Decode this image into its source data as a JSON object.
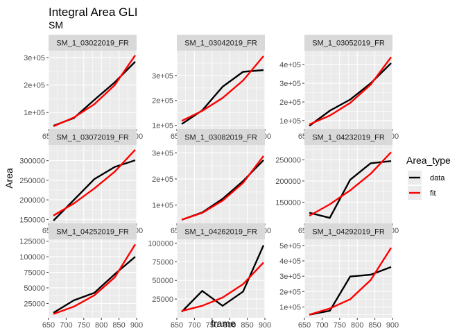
{
  "chart_data": {
    "type": "line",
    "title": "Integral Area GLI",
    "subtitle": "SM",
    "xlabel": "frame",
    "ylabel": "Area",
    "xlim": [
      650,
      900
    ],
    "x_ticks": [
      650,
      700,
      750,
      800,
      850,
      900
    ],
    "legend": {
      "title": "Area_type",
      "position": "right",
      "entries": [
        {
          "name": "data",
          "color": "#000000"
        },
        {
          "name": "fit",
          "color": "#ff0000"
        }
      ]
    },
    "colors": {
      "panel_bg": "#ebebeb",
      "grid": "#ffffff",
      "strip_bg": "#d9d9d9",
      "data": "#000000",
      "fit": "#ff0000"
    },
    "grid": true,
    "facets": [
      {
        "label": "SM_1_03022019_FR",
        "ylim": [
          40000,
          325000
        ],
        "y_ticks": [
          100000,
          200000,
          300000
        ],
        "y_tick_labels": [
          "1e+05",
          "2e+05",
          "3e+05"
        ],
        "x": [
          664,
          722,
          780,
          838,
          896
        ],
        "series": [
          {
            "name": "data",
            "values": [
              52000,
              80000,
              146000,
              210000,
              285000
            ]
          },
          {
            "name": "fit",
            "values": [
              50000,
              82000,
              130000,
              200000,
              308000
            ]
          }
        ]
      },
      {
        "label": "SM_1_03042019_FR",
        "ylim": [
          85000,
          400000
        ],
        "y_ticks": [
          100000,
          200000,
          300000
        ],
        "y_tick_labels": [
          "1e+05",
          "2e+05",
          "3e+05"
        ],
        "x": [
          664,
          722,
          780,
          838,
          896
        ],
        "series": [
          {
            "name": "data",
            "values": [
              105000,
              160000,
              255000,
              315000,
              322000
            ]
          },
          {
            "name": "fit",
            "values": [
              118000,
              158000,
              210000,
              280000,
              378000
            ]
          }
        ]
      },
      {
        "label": "SM_1_03052019_FR",
        "ylim": [
          55000,
          475000
        ],
        "y_ticks": [
          100000,
          200000,
          300000,
          400000
        ],
        "y_tick_labels": [
          "1e+05",
          "2e+05",
          "3e+05",
          "4e+05"
        ],
        "x": [
          664,
          722,
          780,
          838,
          896
        ],
        "series": [
          {
            "name": "data",
            "values": [
              72000,
              153000,
              213000,
              300000,
              408000
            ]
          },
          {
            "name": "fit",
            "values": [
              80000,
              127000,
              195000,
              293000,
              440000
            ]
          }
        ]
      },
      {
        "label": "SM_1_03072019_FR",
        "ylim": [
          140000,
          340000
        ],
        "y_ticks": [
          150000,
          200000,
          250000,
          300000
        ],
        "y_tick_labels": [
          "150000",
          "200000",
          "250000",
          "300000"
        ],
        "x": [
          664,
          722,
          780,
          838,
          896
        ],
        "series": [
          {
            "name": "data",
            "values": [
              147000,
              200000,
              253000,
              284000,
              301000
            ]
          },
          {
            "name": "fit",
            "values": [
              160000,
              191000,
              229000,
              272000,
              328000
            ]
          }
        ]
      },
      {
        "label": "SM_1_03082019_FR",
        "ylim": [
          30000,
          330000
        ],
        "y_ticks": [
          100000,
          200000,
          300000
        ],
        "y_tick_labels": [
          "1e+05",
          "2e+05",
          "3e+05"
        ],
        "x": [
          664,
          722,
          780,
          838,
          896
        ],
        "series": [
          {
            "name": "data",
            "values": [
              44000,
              72000,
              124000,
              192000,
              272000
            ]
          },
          {
            "name": "fit",
            "values": [
              44000,
              70000,
              117000,
              185000,
              288000
            ]
          }
        ]
      },
      {
        "label": "SM_1_04232019_FR",
        "ylim": [
          100000,
          285000
        ],
        "y_ticks": [
          150000,
          200000,
          250000
        ],
        "y_tick_labels": [
          "150000",
          "200000",
          "250000"
        ],
        "x": [
          664,
          722,
          780,
          838,
          896
        ],
        "series": [
          {
            "name": "data",
            "values": [
              125000,
              113000,
              203000,
              242000,
              247000
            ]
          },
          {
            "name": "fit",
            "values": [
              118000,
              145000,
              178000,
              217000,
              268000
            ]
          }
        ]
      },
      {
        "label": "SM_1_04252019_FR",
        "ylim": [
          2000,
          128000
        ],
        "y_ticks": [
          25000,
          50000,
          75000,
          100000,
          125000
        ],
        "y_tick_labels": [
          "25000",
          "50000",
          "75000",
          "100000",
          "125000"
        ],
        "x": [
          664,
          722,
          780,
          838,
          896
        ],
        "series": [
          {
            "name": "data",
            "values": [
              10000,
              30000,
              42000,
              72000,
              100000
            ]
          },
          {
            "name": "fit",
            "values": [
              8000,
              20000,
              38000,
              67000,
              120000
            ]
          }
        ]
      },
      {
        "label": "SM_1_04262019_FR",
        "ylim": [
          0,
          105000
        ],
        "y_ticks": [
          25000,
          50000,
          75000,
          100000
        ],
        "y_tick_labels": [
          "25000",
          "50000",
          "75000",
          "100000"
        ],
        "x": [
          664,
          722,
          780,
          838,
          896
        ],
        "series": [
          {
            "name": "data",
            "values": [
              8000,
              36000,
              16000,
              35000,
              97000
            ]
          },
          {
            "name": "fit",
            "values": [
              9000,
              16000,
              27000,
              45000,
              74000
            ]
          }
        ]
      },
      {
        "label": "SM_1_04292019_FR",
        "ylim": [
          30000,
          540000
        ],
        "y_ticks": [
          100000,
          200000,
          300000,
          400000,
          500000
        ],
        "y_tick_labels": [
          "1e+05",
          "2e+05",
          "3e+05",
          "4e+05",
          "5e+05"
        ],
        "x": [
          664,
          722,
          780,
          838,
          896
        ],
        "series": [
          {
            "name": "data",
            "values": [
              50000,
              75000,
              298000,
              310000,
              360000
            ]
          },
          {
            "name": "fit",
            "values": [
              50000,
              90000,
              150000,
              275000,
              485000
            ]
          }
        ]
      }
    ]
  }
}
